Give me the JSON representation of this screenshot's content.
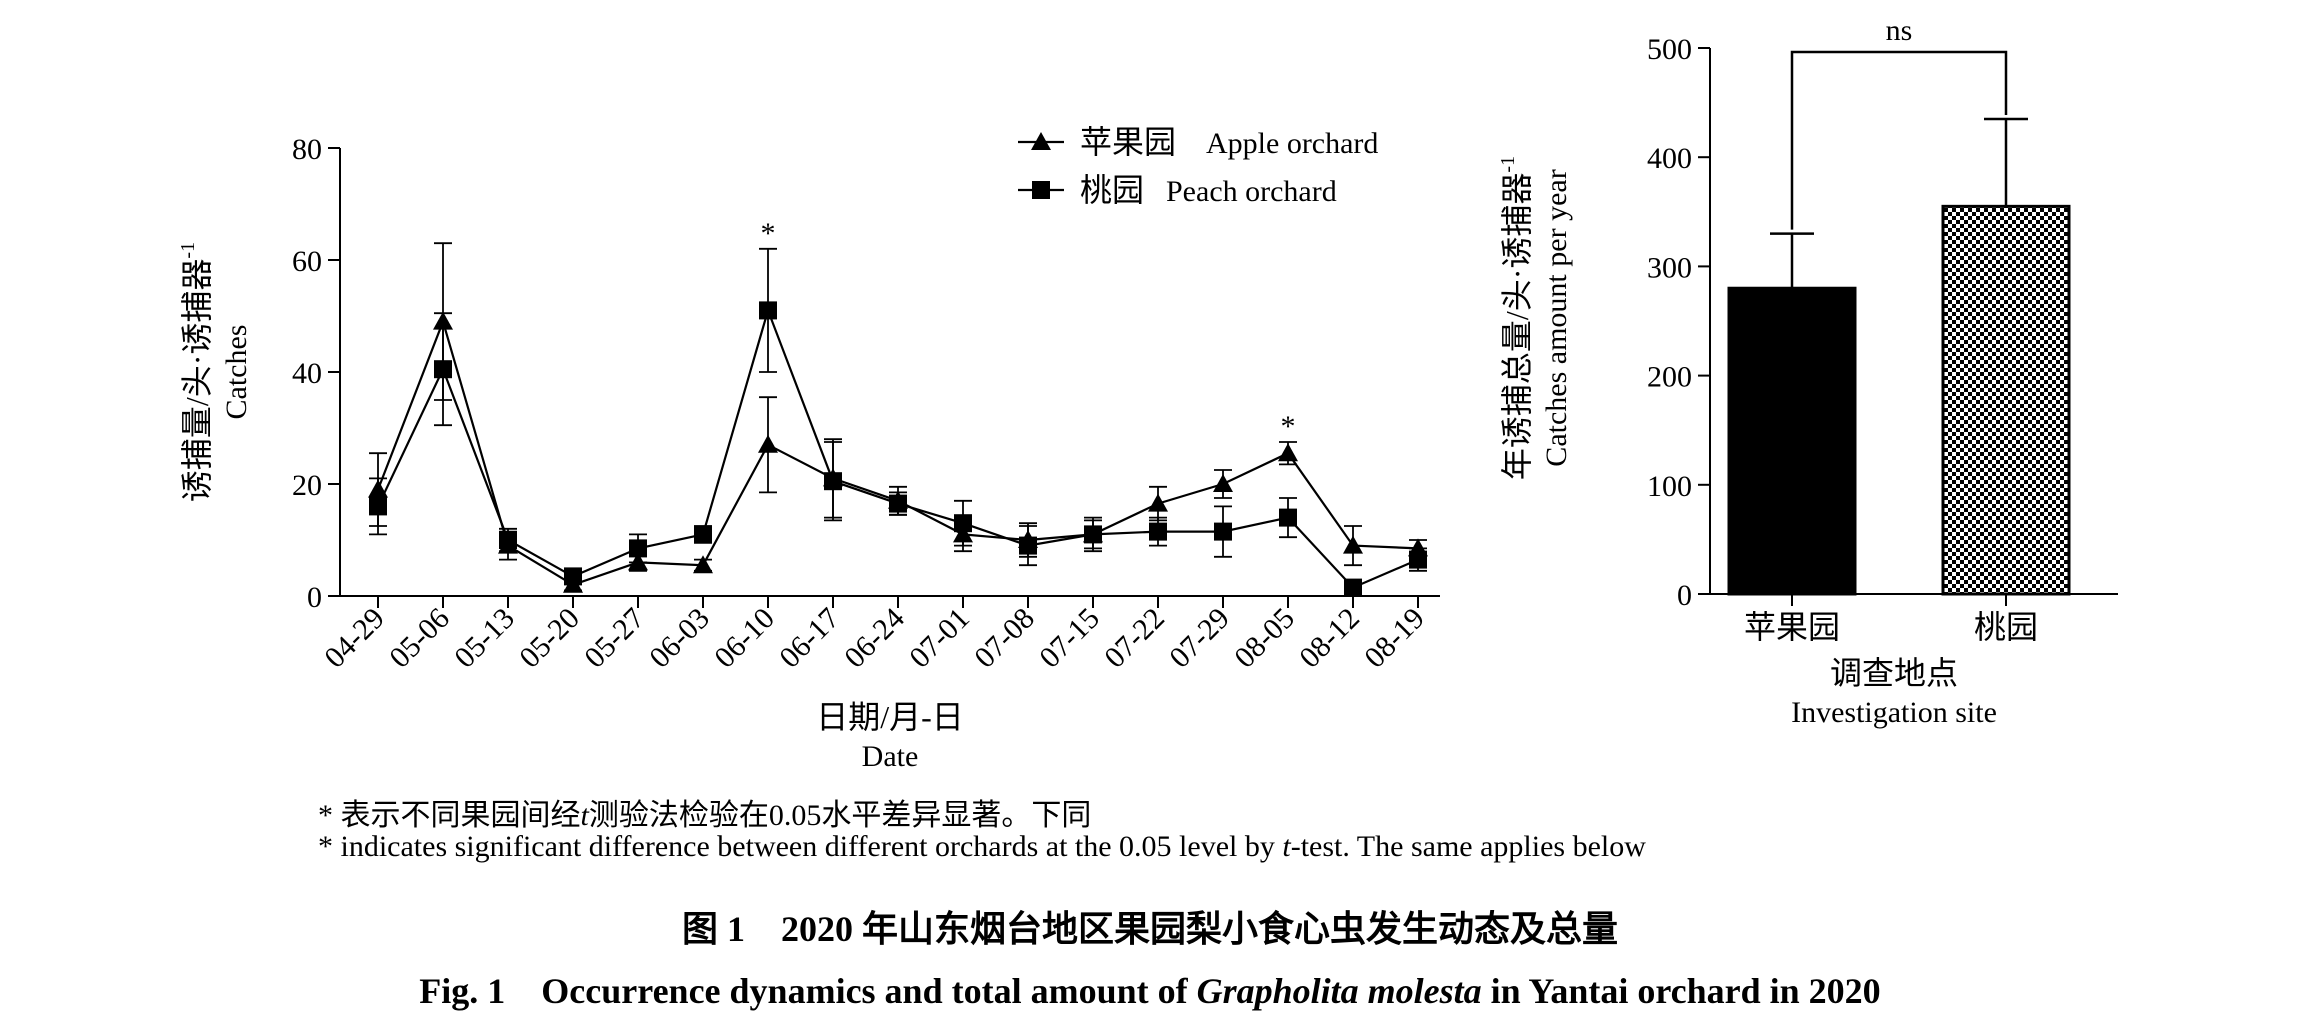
{
  "chart_data": [
    {
      "type": "line",
      "categories": [
        "04-29",
        "05-06",
        "05-13",
        "05-20",
        "05-27",
        "06-03",
        "06-10",
        "06-17",
        "06-24",
        "07-01",
        "07-08",
        "07-15",
        "07-22",
        "07-29",
        "08-05",
        "08-12",
        "08-19"
      ],
      "series": [
        {
          "name": "苹果园 Apple orchard",
          "legend_cn": "苹果园",
          "legend_en": "Apple orchard",
          "marker": "triangle",
          "values": [
            19,
            49,
            9,
            2,
            6,
            5.5,
            27,
            21,
            17,
            11,
            10,
            11,
            16.5,
            20,
            25.5,
            9,
            8.5
          ],
          "errors": [
            6.5,
            14,
            2.5,
            1,
            1.5,
            1,
            8.5,
            7,
            2.5,
            3,
            3,
            2.5,
            3,
            2.5,
            2,
            3.5,
            1.5
          ]
        },
        {
          "name": "桃园 Peach orchard",
          "legend_cn": "桃园",
          "legend_en": "Peach orchard",
          "marker": "square",
          "values": [
            16,
            40.5,
            10,
            3.5,
            8.5,
            11,
            51,
            20.5,
            16.5,
            13,
            9,
            11,
            11.5,
            11.5,
            14,
            1.5,
            6.5
          ],
          "errors": [
            5,
            10,
            2,
            1,
            2.5,
            1.5,
            11,
            7,
            2,
            4,
            3.5,
            3,
            2.5,
            4.5,
            3.5,
            0.5,
            2
          ]
        }
      ],
      "significant_categories": [
        "06-10",
        "08-05"
      ],
      "significance_mark": "*",
      "ylim": [
        0,
        80
      ],
      "yticks": [
        0,
        20,
        40,
        60,
        80
      ],
      "ylabel_cn": "诱捕量/头·诱捕器",
      "ylabel_sup": "-1",
      "ylabel_en": "Catches",
      "xlabel_cn": "日期/月-日",
      "xlabel_en": "Date",
      "legend_position": "top-right"
    },
    {
      "type": "bar",
      "categories": [
        "苹果园",
        "桃园"
      ],
      "values": [
        280,
        355
      ],
      "errors": [
        50,
        80
      ],
      "patterns": [
        "solid",
        "checkered"
      ],
      "ylim": [
        0,
        500
      ],
      "yticks": [
        0,
        100,
        200,
        300,
        400,
        500
      ],
      "ylabel_cn": "年诱捕总量/头·诱捕器",
      "ylabel_sup": "-1",
      "ylabel_en": "Catches amount per year",
      "xlabel_cn": "调查地点",
      "xlabel_en": "Investigation site",
      "significance": "ns"
    }
  ],
  "notes": {
    "cn_prefix": "* 表示不同果园间经",
    "cn_t": "t",
    "cn_suffix": "测验法检验在0.05水平差异显著。下同",
    "en_prefix": "* indicates significant difference between different orchards at the 0.05 level by ",
    "en_t": "t",
    "en_suffix": "-test. The same applies below"
  },
  "caption": {
    "cn": "图 1　2020 年山东烟台地区果园梨小食心虫发生动态及总量",
    "en_prefix": "Fig. 1　Occurrence dynamics and total amount of ",
    "en_species": "Grapholita molesta",
    "en_suffix": " in Yantai orchard in 2020"
  }
}
